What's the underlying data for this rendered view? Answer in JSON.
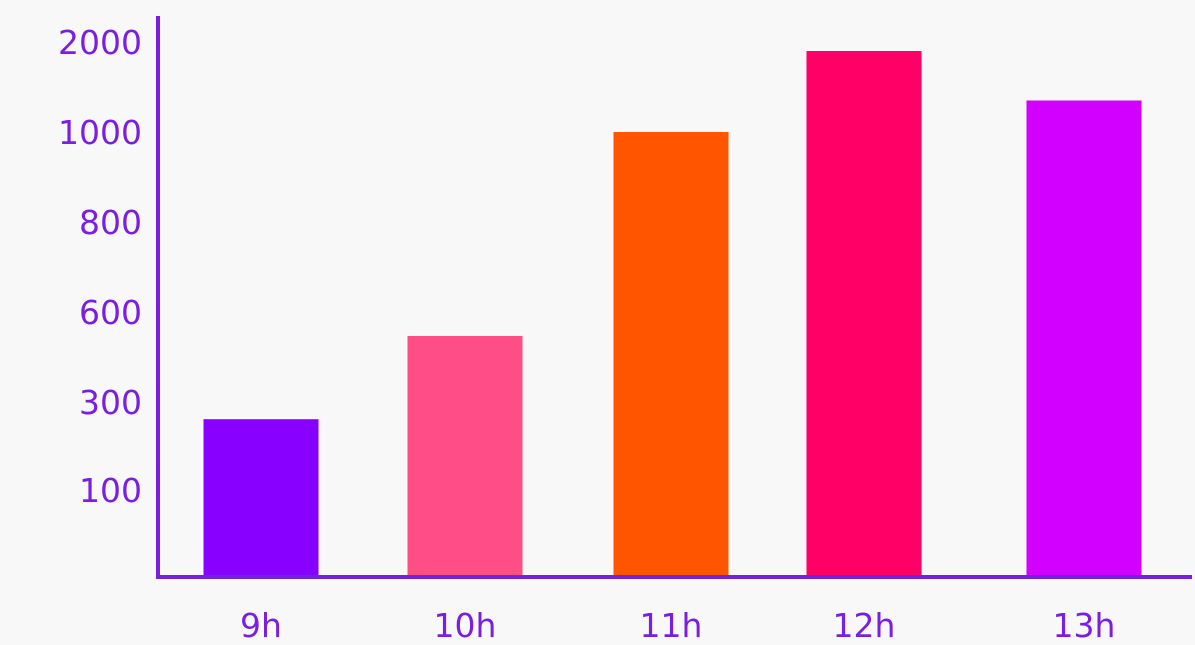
{
  "chart_data": {
    "type": "bar",
    "title": "",
    "xlabel": "",
    "ylabel": "",
    "categories": [
      "9h",
      "10h",
      "11h",
      "12h",
      "13h"
    ],
    "values": [
      260,
      520,
      1000,
      1900,
      1350
    ],
    "bar_colors": [
      "#8800ff",
      "#ff4d88",
      "#ff5500",
      "#ff0066",
      "#d100ff"
    ],
    "y_ticks": [
      100,
      300,
      600,
      800,
      1000,
      2000
    ],
    "y_tick_labels": [
      "100",
      "300",
      "600",
      "800",
      "1000",
      "2000"
    ],
    "ylim": [
      0,
      2000
    ],
    "y_scale": "categorical (ticks evenly spaced: 0, 100, 300, 600, 800, 1000, 2000)",
    "grid": false,
    "legend": "none",
    "colors": {
      "axis": "#7a1fe0",
      "tick_text": "#7a1fe0",
      "background": "#f8f8f8"
    }
  }
}
